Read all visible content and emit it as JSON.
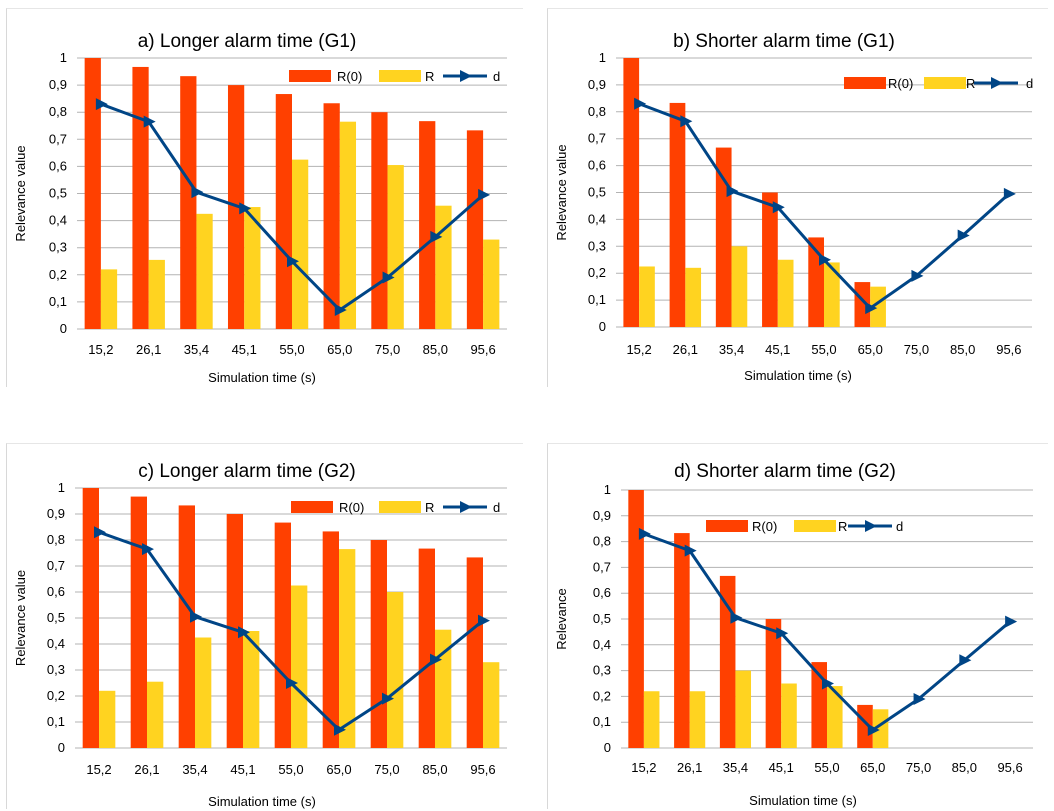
{
  "colors": {
    "r0": "#ff4000",
    "r": "#ffd320",
    "d": "#004586",
    "grid": "#b3b3b3"
  },
  "chart_data": [
    {
      "type": "bar",
      "title": "a) Longer alarm time (G1)",
      "xlabel": "Simulation time (s)",
      "ylabel": "Relevance value",
      "ylim": [
        0,
        1
      ],
      "yticks": [
        "0",
        "0,1",
        "0,2",
        "0,3",
        "0,4",
        "0,5",
        "0,6",
        "0,7",
        "0,8",
        "0,9",
        "1"
      ],
      "categories": [
        "15,2",
        "26,1",
        "35,4",
        "45,1",
        "55,0",
        "65,0",
        "75,0",
        "85,0",
        "95,6"
      ],
      "grid": true,
      "legend": "top-right",
      "series": [
        {
          "name": "R(0)",
          "type": "bar",
          "values": [
            1.0,
            0.967,
            0.933,
            0.9,
            0.867,
            0.833,
            0.8,
            0.767,
            0.733
          ]
        },
        {
          "name": "R",
          "type": "bar",
          "values": [
            0.22,
            0.255,
            0.425,
            0.45,
            0.625,
            0.765,
            0.605,
            0.455,
            0.33
          ]
        },
        {
          "name": "d",
          "type": "line",
          "values": [
            0.83,
            0.765,
            0.505,
            0.445,
            0.25,
            0.07,
            0.19,
            0.34,
            0.495
          ]
        }
      ]
    },
    {
      "type": "bar",
      "title": "b) Shorter alarm time (G1)",
      "xlabel": "Simulation time (s)",
      "ylabel": "Relevance value",
      "ylim": [
        0,
        1
      ],
      "yticks": [
        "0",
        "0,1",
        "0,2",
        "0,3",
        "0,4",
        "0,5",
        "0,6",
        "0,7",
        "0,8",
        "0,9",
        "1"
      ],
      "categories": [
        "15,2",
        "26,1",
        "35,4",
        "45,1",
        "55,0",
        "65,0",
        "75,0",
        "85,0",
        "95,6"
      ],
      "grid": true,
      "legend": "top-right",
      "series": [
        {
          "name": "R(0)",
          "type": "bar",
          "values": [
            1.0,
            0.833,
            0.667,
            0.5,
            0.333,
            0.167,
            null,
            null,
            null
          ]
        },
        {
          "name": "R",
          "type": "bar",
          "values": [
            0.225,
            0.22,
            0.3,
            0.25,
            0.24,
            0.15,
            null,
            null,
            null
          ]
        },
        {
          "name": "d",
          "type": "line",
          "values": [
            0.83,
            0.765,
            0.505,
            0.445,
            0.25,
            0.07,
            0.19,
            0.34,
            0.495
          ]
        }
      ]
    },
    {
      "type": "bar",
      "title": "c) Longer alarm time (G2)",
      "xlabel": "Simulation time (s)",
      "ylabel": "Relevance value",
      "ylim": [
        0,
        1
      ],
      "yticks": [
        "0",
        "0,1",
        "0,2",
        "0,3",
        "0,4",
        "0,5",
        "0,6",
        "0,7",
        "0,8",
        "0,9",
        "1"
      ],
      "categories": [
        "15,2",
        "26,1",
        "35,4",
        "45,1",
        "55,0",
        "65,0",
        "75,0",
        "85,0",
        "95,6"
      ],
      "grid": true,
      "legend": "top-right",
      "series": [
        {
          "name": "R(0)",
          "type": "bar",
          "values": [
            1.0,
            0.967,
            0.933,
            0.9,
            0.867,
            0.833,
            0.8,
            0.767,
            0.733
          ]
        },
        {
          "name": "R",
          "type": "bar",
          "values": [
            0.22,
            0.255,
            0.425,
            0.45,
            0.625,
            0.765,
            0.6,
            0.455,
            0.33
          ]
        },
        {
          "name": "d",
          "type": "line",
          "values": [
            0.83,
            0.765,
            0.505,
            0.445,
            0.25,
            0.07,
            0.19,
            0.34,
            0.49
          ]
        }
      ]
    },
    {
      "type": "bar",
      "title": "d) Shorter alarm time (G2)",
      "xlabel": "Simulation time (s)",
      "ylabel": "Relevance",
      "ylim": [
        0,
        1
      ],
      "yticks": [
        "0",
        "0,1",
        "0,2",
        "0,3",
        "0,4",
        "0,5",
        "0,6",
        "0,7",
        "0,8",
        "0,9",
        "1"
      ],
      "categories": [
        "15,2",
        "26,1",
        "35,4",
        "45,1",
        "55,0",
        "65,0",
        "75,0",
        "85,0",
        "95,6"
      ],
      "grid": true,
      "legend": "top-center",
      "series": [
        {
          "name": "R(0)",
          "type": "bar",
          "values": [
            1.0,
            0.833,
            0.667,
            0.5,
            0.333,
            0.167,
            null,
            null,
            null
          ]
        },
        {
          "name": "R",
          "type": "bar",
          "values": [
            0.22,
            0.22,
            0.3,
            0.25,
            0.24,
            0.15,
            null,
            null,
            null
          ]
        },
        {
          "name": "d",
          "type": "line",
          "values": [
            0.83,
            0.765,
            0.505,
            0.445,
            0.25,
            0.07,
            0.19,
            0.34,
            0.49
          ]
        }
      ]
    }
  ]
}
